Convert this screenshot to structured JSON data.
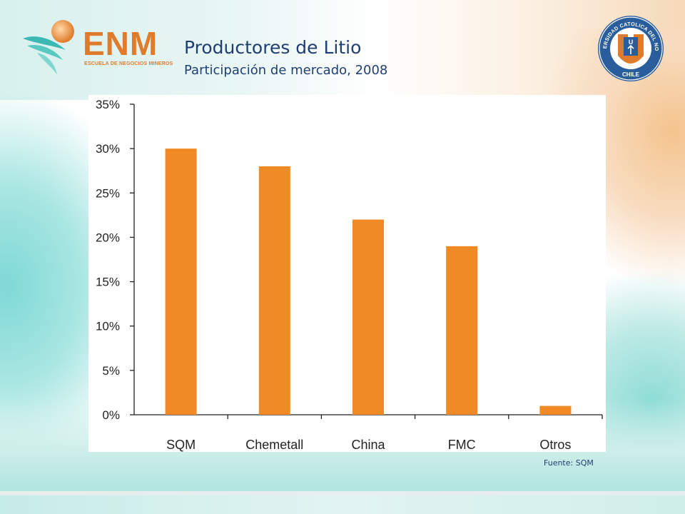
{
  "header": {
    "title": "Productores de Litio",
    "subtitle": "Participación de mercado, 2008"
  },
  "logo": {
    "wordmark": "ENM",
    "tagline": "ESCUELA DE NEGOCIOS MINEROS",
    "color": "#e07b2b"
  },
  "seal": {
    "text": "UNIVERSIDAD CATOLICA DEL NORTE",
    "letter": "U",
    "country": "CHILE",
    "color": "#2a5d9c"
  },
  "source": "Fuente: SQM",
  "chart_data": {
    "type": "bar",
    "categories": [
      "SQM",
      "Chemetall",
      "China",
      "FMC",
      "Otros"
    ],
    "values": [
      30,
      28,
      22,
      19,
      1
    ],
    "yticks": [
      "0%",
      "5%",
      "10%",
      "15%",
      "20%",
      "25%",
      "30%",
      "35%"
    ],
    "ylim": [
      0,
      35
    ],
    "unit": "%",
    "grid": false,
    "bar_color": "#f08a24"
  }
}
